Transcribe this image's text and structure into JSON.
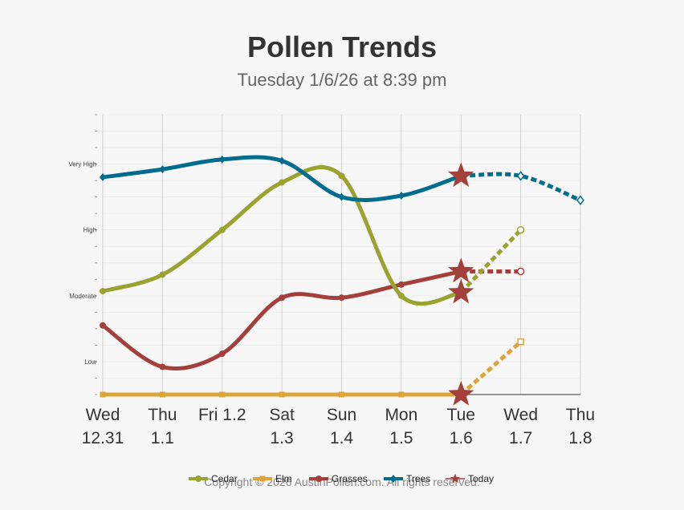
{
  "header": {
    "title": "Pollen Trends",
    "subtitle": "Tuesday 1/6/26 at 8:39 pm"
  },
  "footer": {
    "copyright": "Copyright © 2026 AustinPollen.com.  All rights reserved."
  },
  "legend": [
    {
      "label": "Cedar",
      "color": "#9aa330",
      "marker": "circle"
    },
    {
      "label": "Elm",
      "color": "#dba53a",
      "marker": "square"
    },
    {
      "label": "Grasses",
      "color": "#a3403b",
      "marker": "circle"
    },
    {
      "label": "Trees",
      "color": "#006d8f",
      "marker": "diamond"
    },
    {
      "label": "Today",
      "color": "#a3403b",
      "marker": "star"
    }
  ],
  "chart_data": {
    "type": "line",
    "categories": [
      {
        "day": "Wed",
        "date": "12.31"
      },
      {
        "day": "Thu",
        "date": "1.1"
      },
      {
        "day": "Fri 1.2",
        "date": ""
      },
      {
        "day": "Sat",
        "date": "1.3"
      },
      {
        "day": "Sun",
        "date": "1.4"
      },
      {
        "day": "Mon",
        "date": "1.5"
      },
      {
        "day": "Tue",
        "date": "1.6"
      },
      {
        "day": "Wed",
        "date": "1.7"
      },
      {
        "day": "Thu",
        "date": "1.8"
      }
    ],
    "y_levels": [
      {
        "label": "Low",
        "value": 1
      },
      {
        "label": "Moderate",
        "value": 2
      },
      {
        "label": "High",
        "value": 3
      },
      {
        "label": "Very High",
        "value": 4
      }
    ],
    "ylim": [
      0.5,
      4.75
    ],
    "today_index": 6,
    "series": [
      {
        "name": "Cedar",
        "color": "#9aa330",
        "marker": "circle",
        "values": [
          2.07,
          2.32,
          3.0,
          3.72,
          3.82,
          2.0,
          2.05,
          3.0,
          null
        ]
      },
      {
        "name": "Elm",
        "color": "#dba53a",
        "marker": "square",
        "values": [
          0.5,
          0.5,
          0.5,
          0.5,
          0.5,
          0.5,
          0.5,
          1.3,
          null
        ]
      },
      {
        "name": "Grasses",
        "color": "#a3403b",
        "marker": "circle",
        "values": [
          1.55,
          0.92,
          1.12,
          1.97,
          1.97,
          2.17,
          2.37,
          2.37,
          null
        ]
      },
      {
        "name": "Trees",
        "color": "#006d8f",
        "marker": "diamond",
        "values": [
          3.8,
          3.92,
          4.07,
          4.05,
          3.5,
          3.52,
          3.82,
          3.82,
          3.45
        ]
      }
    ],
    "today_markers": [
      {
        "series": "Trees",
        "value": 3.82
      },
      {
        "series": "Cedar",
        "value": 2.05
      },
      {
        "series": "Grasses",
        "value": 2.37
      },
      {
        "series": "Elm",
        "value": 0.5
      }
    ],
    "grid": true,
    "legend_position": "bottom"
  }
}
